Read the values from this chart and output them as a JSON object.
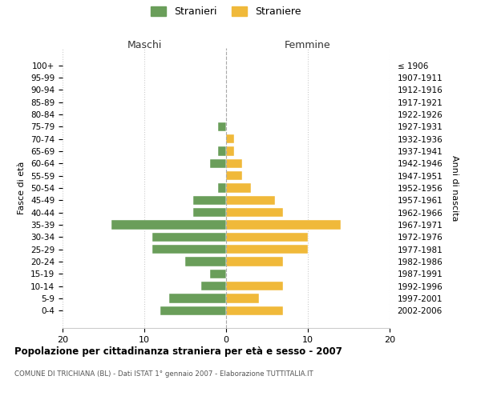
{
  "age_groups": [
    "100+",
    "95-99",
    "90-94",
    "85-89",
    "80-84",
    "75-79",
    "70-74",
    "65-69",
    "60-64",
    "55-59",
    "50-54",
    "45-49",
    "40-44",
    "35-39",
    "30-34",
    "25-29",
    "20-24",
    "15-19",
    "10-14",
    "5-9",
    "0-4"
  ],
  "birth_years": [
    "≤ 1906",
    "1907-1911",
    "1912-1916",
    "1917-1921",
    "1922-1926",
    "1927-1931",
    "1932-1936",
    "1937-1941",
    "1942-1946",
    "1947-1951",
    "1952-1956",
    "1957-1961",
    "1962-1966",
    "1967-1971",
    "1972-1976",
    "1977-1981",
    "1982-1986",
    "1987-1991",
    "1992-1996",
    "1997-2001",
    "2002-2006"
  ],
  "males": [
    0,
    0,
    0,
    0,
    0,
    1,
    0,
    1,
    2,
    0,
    1,
    4,
    4,
    14,
    9,
    9,
    5,
    2,
    3,
    7,
    8
  ],
  "females": [
    0,
    0,
    0,
    0,
    0,
    0,
    1,
    1,
    2,
    2,
    3,
    6,
    7,
    14,
    10,
    10,
    7,
    0,
    7,
    4,
    7
  ],
  "male_color": "#6a9e5a",
  "female_color": "#f0b93a",
  "title": "Popolazione per cittadinanza straniera per età e sesso - 2007",
  "subtitle": "COMUNE DI TRICHIANA (BL) - Dati ISTAT 1° gennaio 2007 - Elaborazione TUTTITALIA.IT",
  "ylabel_left": "Fasce di età",
  "ylabel_right": "Anni di nascita",
  "xlabel_left": "Maschi",
  "xlabel_right": "Femmine",
  "legend_male": "Stranieri",
  "legend_female": "Straniere",
  "xlim": 20,
  "background_color": "#ffffff",
  "grid_color": "#cccccc"
}
